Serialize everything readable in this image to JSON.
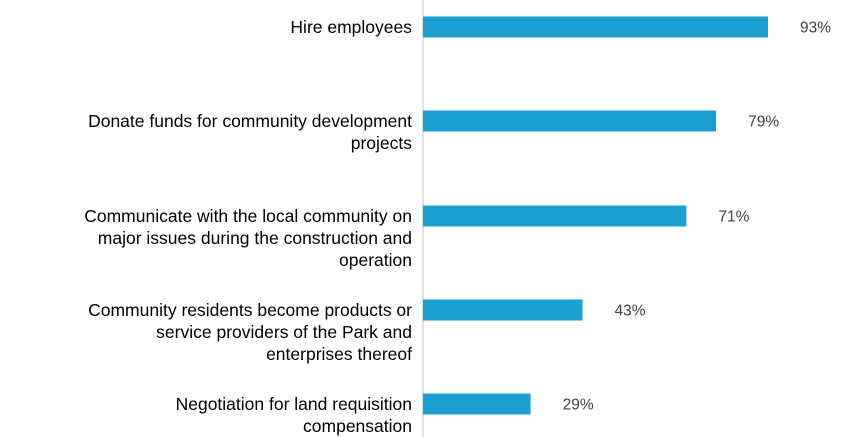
{
  "chart_data": {
    "type": "bar",
    "orientation": "horizontal",
    "title": "",
    "xlabel": "",
    "ylabel": "",
    "xlim": [
      0,
      100
    ],
    "grid": false,
    "legend": "none",
    "bar_color": "#1a9fd0",
    "categories": [
      "Hire employees",
      "Donate funds for community development projects",
      "Communicate with the local community on major issues during the construction and operation",
      "Community residents become products or service providers of the Park and enterprises thereof",
      "Negotiation for land requisition compensation"
    ],
    "category_lines": [
      [
        "Hire employees"
      ],
      [
        "Donate funds for community development",
        "projects"
      ],
      [
        "Communicate with the local community on",
        "major issues during the construction and",
        "operation"
      ],
      [
        "Community residents become products or",
        "service providers of the Park and",
        "enterprises thereof"
      ],
      [
        "Negotiation for land requisition",
        "compensation"
      ]
    ],
    "values": [
      93,
      79,
      71,
      43,
      29
    ],
    "value_labels": [
      "93%",
      "79%",
      "71%",
      "43%",
      "29%"
    ]
  }
}
